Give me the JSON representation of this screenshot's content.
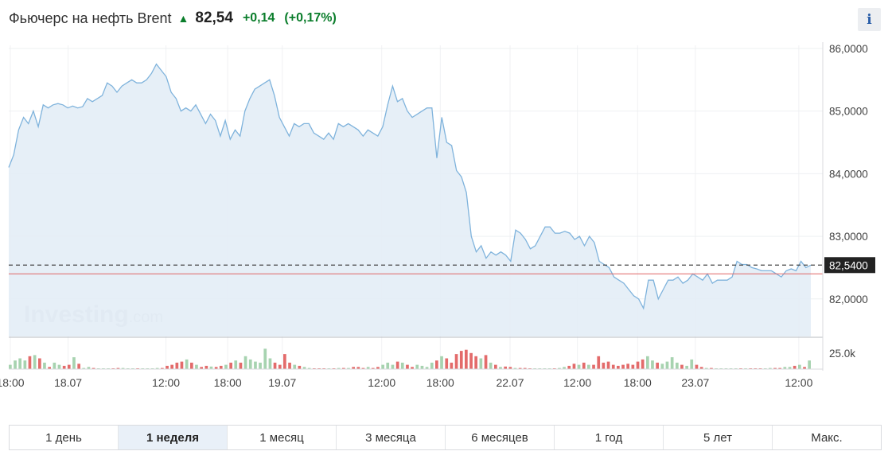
{
  "header": {
    "title": "Фьючерс на нефть Brent",
    "price": "82,54",
    "change": "+0,14",
    "change_pct": "(+0,17%)",
    "direction_icon": "arrow-up-icon",
    "up_color": "#0a7d2b"
  },
  "info_button": {
    "label": "i",
    "icon": "info-icon"
  },
  "watermark": {
    "brand": "Investing",
    "suffix": ".com"
  },
  "chart_data": {
    "type": "area",
    "price_axis": {
      "ticks": [
        "86,0000",
        "85,0000",
        "84,0000",
        "83,0000",
        "82,0000"
      ],
      "tick_values": [
        86,
        85,
        84,
        83,
        82
      ],
      "range": [
        81.4,
        86.05
      ]
    },
    "last_price": {
      "label": "82,5400",
      "value": 82.54
    },
    "reference_line": {
      "value": 82.4,
      "color": "#e06666"
    },
    "x_ticks": [
      "18:00",
      "18.07",
      "12:00",
      "18:00",
      "19.07",
      "12:00",
      "18:00",
      "22.07",
      "12:00",
      "18:00",
      "23.07",
      "12:00"
    ],
    "x_tick_positions": [
      0.2,
      7.4,
      19.6,
      27.3,
      34.1,
      46.5,
      53.8,
      62.5,
      70.9,
      78.4,
      85.6,
      98.5
    ],
    "price_series": [
      84.1,
      84.3,
      84.7,
      84.9,
      84.8,
      85.0,
      84.75,
      85.1,
      85.05,
      85.1,
      85.12,
      85.1,
      85.05,
      85.08,
      85.05,
      85.07,
      85.2,
      85.15,
      85.2,
      85.25,
      85.45,
      85.4,
      85.3,
      85.4,
      85.45,
      85.5,
      85.45,
      85.45,
      85.5,
      85.6,
      85.75,
      85.65,
      85.55,
      85.3,
      85.2,
      85.0,
      85.05,
      85.0,
      85.1,
      84.95,
      84.8,
      84.95,
      84.85,
      84.6,
      84.85,
      84.55,
      84.7,
      84.6,
      85.0,
      85.2,
      85.35,
      85.4,
      85.45,
      85.5,
      85.25,
      84.9,
      84.75,
      84.6,
      84.8,
      84.75,
      84.8,
      84.8,
      84.65,
      84.6,
      84.55,
      84.65,
      84.55,
      84.8,
      84.75,
      84.8,
      84.75,
      84.7,
      84.6,
      84.7,
      84.65,
      84.6,
      84.75,
      85.1,
      85.4,
      85.15,
      85.2,
      85.0,
      84.9,
      84.95,
      85.0,
      85.05,
      85.05,
      84.25,
      84.9,
      84.5,
      84.45,
      84.05,
      83.95,
      83.7,
      83.0,
      82.75,
      82.85,
      82.65,
      82.75,
      82.7,
      82.75,
      82.7,
      82.6,
      83.1,
      83.05,
      82.95,
      82.8,
      82.85,
      83.0,
      83.15,
      83.15,
      83.05,
      83.05,
      83.08,
      83.05,
      82.95,
      83.0,
      82.85,
      83.0,
      82.9,
      82.6,
      82.55,
      82.5,
      82.35,
      82.3,
      82.25,
      82.15,
      82.05,
      82.0,
      81.85,
      82.3,
      82.3,
      82.0,
      82.15,
      82.3,
      82.3,
      82.35,
      82.25,
      82.3,
      82.4,
      82.35,
      82.3,
      82.4,
      82.25,
      82.3,
      82.3,
      82.3,
      82.35,
      82.6,
      82.55,
      82.55,
      82.5,
      82.48,
      82.45,
      82.45,
      82.45,
      82.4,
      82.35,
      82.45,
      82.48,
      82.45,
      82.6,
      82.5,
      82.54
    ],
    "volume_axis": {
      "label": "25.0k",
      "value": 25000
    },
    "volume_series": [
      0.2,
      0.4,
      0.5,
      0.4,
      0.6,
      0.65,
      0.5,
      0.3,
      0.1,
      0.3,
      0.2,
      0.15,
      0.2,
      0.55,
      0.25,
      0.05,
      0.1,
      0.05,
      0.02,
      0.02,
      0.02,
      0.02,
      0.05,
      0.05,
      0.02,
      0.02,
      0.03,
      0.02,
      0.02,
      0.02,
      0.05,
      0.05,
      0.15,
      0.2,
      0.3,
      0.35,
      0.45,
      0.3,
      0.2,
      0.1,
      0.15,
      0.12,
      0.1,
      0.15,
      0.2,
      0.3,
      0.4,
      0.3,
      0.6,
      0.45,
      0.35,
      0.3,
      0.95,
      0.5,
      0.3,
      0.2,
      0.7,
      0.3,
      0.2,
      0.15,
      0.1,
      0.05,
      0.02,
      0.02,
      0.02,
      0.02,
      0.02,
      0.05,
      0.05,
      0.05,
      0.1,
      0.1,
      0.05,
      0.1,
      0.05,
      0.1,
      0.2,
      0.3,
      0.2,
      0.35,
      0.3,
      0.2,
      0.1,
      0.2,
      0.15,
      0.1,
      0.3,
      0.4,
      0.6,
      0.5,
      0.3,
      0.7,
      0.85,
      0.9,
      0.75,
      0.6,
      0.5,
      0.65,
      0.3,
      0.2,
      0.1,
      0.12,
      0.1,
      0.05,
      0.05,
      0.05,
      0.02,
      0.02,
      0.02,
      0.02,
      0.02,
      0.02,
      0.05,
      0.1,
      0.15,
      0.25,
      0.2,
      0.3,
      0.2,
      0.2,
      0.6,
      0.3,
      0.35,
      0.2,
      0.15,
      0.2,
      0.25,
      0.2,
      0.35,
      0.45,
      0.6,
      0.4,
      0.3,
      0.25,
      0.35,
      0.55,
      0.3,
      0.2,
      0.15,
      0.45,
      0.2,
      0.1,
      0.05,
      0.05,
      0.02,
      0.02,
      0.02,
      0.02,
      0.02,
      0.02,
      0.02,
      0.02,
      0.02,
      0.02,
      0.02,
      0.05,
      0.05,
      0.05,
      0.1,
      0.1,
      0.15,
      0.2,
      0.1,
      0.4
    ],
    "colors": {
      "line": "#7fb3dc",
      "area": "#e3edf6",
      "volume_up": "#a7d3b0",
      "volume_down": "#e36b6b",
      "last_price_bg": "#222222"
    }
  },
  "range_tabs": [
    {
      "label": "1 день",
      "active": false
    },
    {
      "label": "1 неделя",
      "active": true
    },
    {
      "label": "1 месяц",
      "active": false
    },
    {
      "label": "3 месяца",
      "active": false
    },
    {
      "label": "6 месяцев",
      "active": false
    },
    {
      "label": "1 год",
      "active": false
    },
    {
      "label": "5 лет",
      "active": false
    },
    {
      "label": "Макс.",
      "active": false
    }
  ]
}
